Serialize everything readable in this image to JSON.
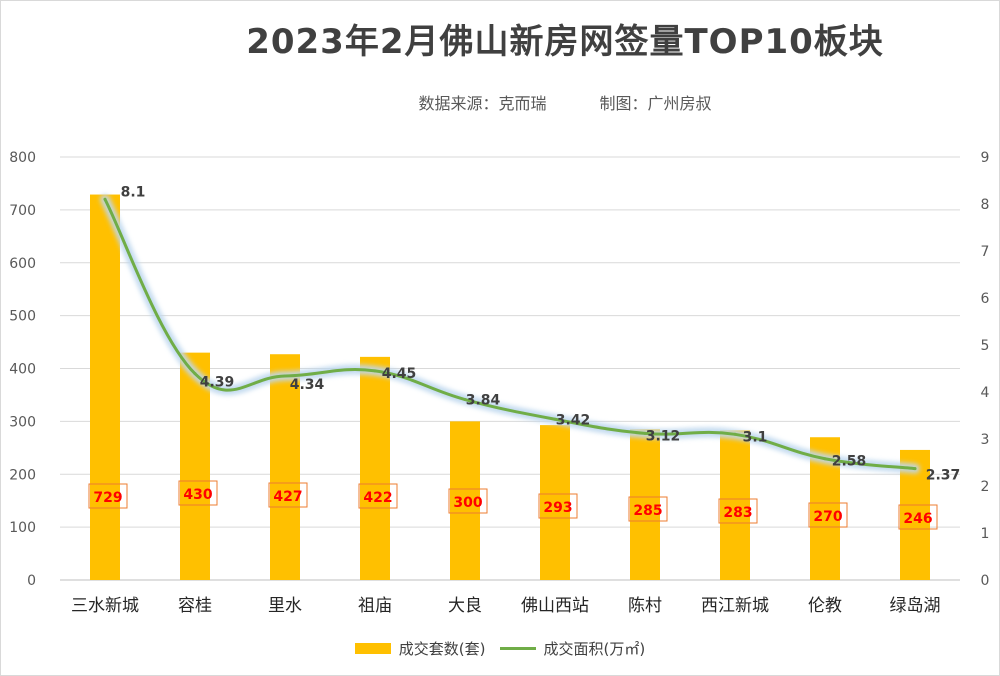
{
  "title": "2023年2月佛山新房网签量TOP10板块",
  "subtitle": {
    "source": "数据来源：克而瑞",
    "author": "制图：广州房叔"
  },
  "legend": {
    "bar_label": "成交套数(套)",
    "line_label": "成交面积(万㎡)"
  },
  "colors": {
    "bar": "#FFC000",
    "line": "#70AD47",
    "glow": "#BDD7EE",
    "data_label_red": "#FF0000",
    "data_label_box": "#ED7D31"
  },
  "chart_data": {
    "type": "bar",
    "categories": [
      "三水新城",
      "容桂",
      "里水",
      "祖庙",
      "大良",
      "佛山西站",
      "陈村",
      "西江新城",
      "伦教",
      "绿岛湖"
    ],
    "series": [
      {
        "name": "成交套数(套)",
        "type": "bar",
        "axis": "left",
        "values": [
          729,
          430,
          427,
          422,
          300,
          293,
          285,
          283,
          270,
          246
        ]
      },
      {
        "name": "成交面积(万㎡)",
        "type": "line",
        "axis": "right",
        "values": [
          8.1,
          4.39,
          4.34,
          4.45,
          3.84,
          3.42,
          3.12,
          3.1,
          2.58,
          2.37
        ]
      }
    ],
    "left_axis": {
      "min": 0,
      "max": 800,
      "ticks": [
        "0",
        "100",
        "200",
        "300",
        "400",
        "500",
        "600",
        "700",
        "800"
      ]
    },
    "right_axis": {
      "min": 0,
      "max": 9,
      "ticks": [
        "0",
        "1",
        "2",
        "3",
        "4",
        "5",
        "6",
        "7",
        "8",
        "9"
      ]
    },
    "bar_value_labels": [
      "729",
      "430",
      "427",
      "422",
      "300",
      "293",
      "285",
      "283",
      "270",
      "246"
    ],
    "line_value_labels": [
      "8.1",
      "4.39",
      "4.34",
      "4.45",
      "3.84",
      "3.42",
      "3.12",
      "3.1",
      "2.58",
      "2.37"
    ],
    "grid": true,
    "legend_position": "bottom"
  }
}
